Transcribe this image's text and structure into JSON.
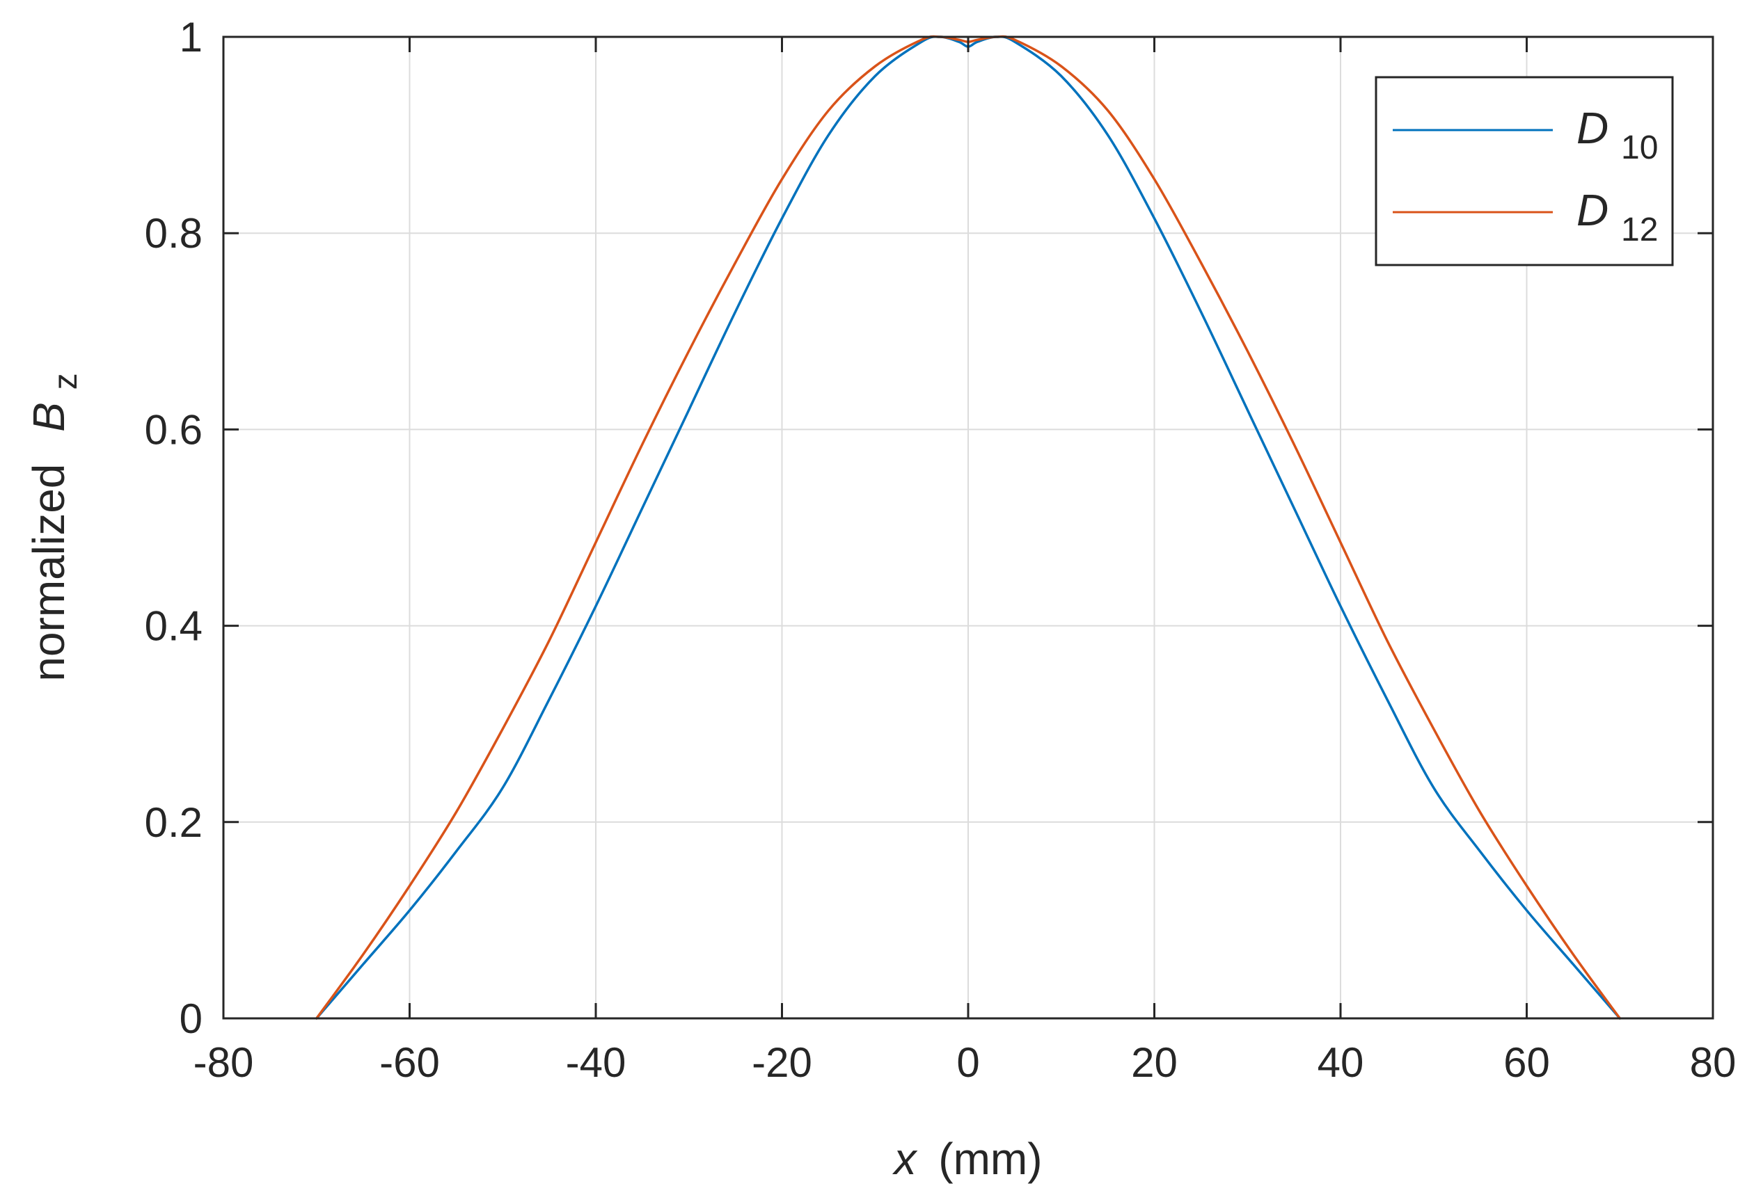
{
  "chart_data": {
    "type": "line",
    "xlabel": {
      "symbol": "x",
      "unit": "(mm)"
    },
    "ylabel": {
      "prefix": "normalized",
      "symbol": "B",
      "subscript": "z"
    },
    "xlim": [
      -80,
      80
    ],
    "ylim": [
      0,
      1
    ],
    "xticks": [
      -80,
      -60,
      -40,
      -20,
      0,
      20,
      40,
      60,
      80
    ],
    "yticks": [
      0,
      0.2,
      0.4,
      0.6,
      0.8,
      1
    ],
    "xtick_labels": [
      "-80",
      "-60",
      "-40",
      "-20",
      "0",
      "20",
      "40",
      "60",
      "80"
    ],
    "ytick_labels": [
      "0",
      "0.2",
      "0.4",
      "0.6",
      "0.8",
      "1"
    ],
    "grid": true,
    "legend_position": "top-right",
    "series": [
      {
        "name": "D10",
        "label_main": "D",
        "label_sub": "10",
        "color": "#0072BD",
        "x": [
          -70,
          -65,
          -60,
          -55,
          -50,
          -45,
          -40,
          -35,
          -30,
          -25,
          -20,
          -15,
          -10,
          -5,
          -3,
          -1,
          0,
          1,
          3,
          5,
          10,
          15,
          20,
          25,
          30,
          35,
          40,
          45,
          50,
          55,
          60,
          65,
          70
        ],
        "y": [
          0,
          0.055,
          0.11,
          0.17,
          0.235,
          0.325,
          0.42,
          0.52,
          0.62,
          0.72,
          0.815,
          0.9,
          0.96,
          0.995,
          1.0,
          0.995,
          0.99,
          0.995,
          1.0,
          0.995,
          0.96,
          0.9,
          0.815,
          0.72,
          0.62,
          0.52,
          0.42,
          0.325,
          0.235,
          0.17,
          0.11,
          0.055,
          0
        ]
      },
      {
        "name": "D12",
        "label_main": "D",
        "label_sub": "12",
        "color": "#D95319",
        "x": [
          -70,
          -65,
          -60,
          -55,
          -50,
          -45,
          -40,
          -35,
          -30,
          -25,
          -20,
          -15,
          -10,
          -5,
          -3,
          -1,
          0,
          1,
          3,
          5,
          10,
          15,
          20,
          25,
          30,
          35,
          40,
          45,
          50,
          55,
          60,
          65,
          70
        ],
        "y": [
          0,
          0.065,
          0.135,
          0.21,
          0.295,
          0.385,
          0.485,
          0.585,
          0.68,
          0.77,
          0.855,
          0.925,
          0.97,
          0.997,
          1.0,
          0.997,
          0.995,
          0.997,
          1.0,
          0.997,
          0.97,
          0.925,
          0.855,
          0.77,
          0.68,
          0.585,
          0.485,
          0.385,
          0.295,
          0.21,
          0.135,
          0.065,
          0
        ]
      }
    ]
  }
}
